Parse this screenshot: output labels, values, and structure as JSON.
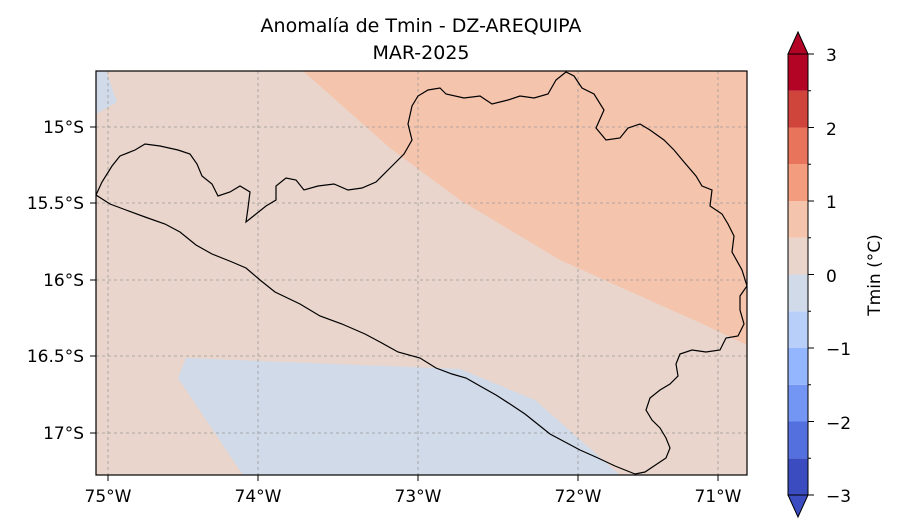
{
  "map": {
    "title": "Anomalía de Tmin - DZ-AREQUIPA",
    "subtitle": "MAR-2025",
    "lon_ticks": [
      "75°W",
      "74°W",
      "73°W",
      "72°W",
      "71°W"
    ],
    "lat_ticks": [
      "15°S",
      "15.5°S",
      "16°S",
      "16.5°S",
      "17°S"
    ]
  },
  "colorbar": {
    "label": "Tmin (°C)",
    "tick_labels": [
      "3",
      "2",
      "1",
      "0",
      "−1",
      "−2",
      "−3"
    ],
    "levels": [
      -3,
      -2.5,
      -2,
      -1.5,
      -1,
      -0.5,
      0,
      0.5,
      1,
      1.5,
      2,
      2.5,
      3
    ],
    "colors": [
      "#3b4cc0",
      "#5470de",
      "#7396f5",
      "#94b6ff",
      "#b7cff9",
      "#d1dae9",
      "#e9d5cb",
      "#f5c4ac",
      "#f39c7e",
      "#e7745b",
      "#cf453c",
      "#b40426"
    ]
  },
  "fields": {
    "zero_to_half_color": "#e9d5cb",
    "half_to_one_color": "#f5c4ac",
    "minus_half_to_zero_color": "#d1dae9"
  }
}
